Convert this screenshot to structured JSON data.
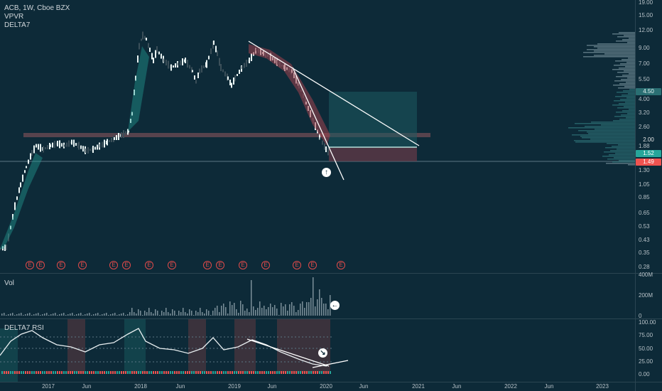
{
  "legend": {
    "title": "ACB, 1W, Cboe BZX",
    "ind1": "VPVR",
    "ind2": "DELTA7",
    "vol": "Vol",
    "rsi": "DELTA7 RSI"
  },
  "price_axis": [
    "19.00",
    "15.00",
    "12.00",
    "9.00",
    "7.00",
    "5.50",
    "4.00",
    "3.20",
    "2.60",
    "1.88",
    "1.30",
    "1.05",
    "0.85",
    "0.65",
    "0.53",
    "0.43",
    "0.35",
    "0.28"
  ],
  "price_tags": [
    {
      "label": "4.50",
      "bg": "#2a6f73",
      "fg": "#e6f2f2"
    },
    {
      "label": "2.00",
      "bg": "#0d2a38",
      "fg": "#e6e6e6"
    },
    {
      "label": "1.52",
      "bg": "#26a69a",
      "fg": "#ffffff"
    },
    {
      "label": "1.49",
      "bg": "#ef5350",
      "fg": "#ffffff"
    }
  ],
  "vol_axis": [
    "400M",
    "200M",
    "0"
  ],
  "rsi_axis": [
    "100.00",
    "75.00",
    "50.00",
    "25.00",
    "0.00"
  ],
  "time_axis": [
    "2017",
    "Jun",
    "2018",
    "Jun",
    "2019",
    "Jun",
    "2020",
    "Jun",
    "2021",
    "Jun",
    "2022",
    "Jun",
    "2023"
  ],
  "earnings_label": "E",
  "icons": {
    "arrow_up": "arrow-up-circle-icon",
    "arrow_left": "arrow-left-circle-icon",
    "arrow_down": "arrow-down-circle-icon"
  },
  "colors": {
    "bg": "#0d2a38",
    "up": "#26a69a",
    "down": "#ef5350",
    "line": "#ffffff"
  }
}
